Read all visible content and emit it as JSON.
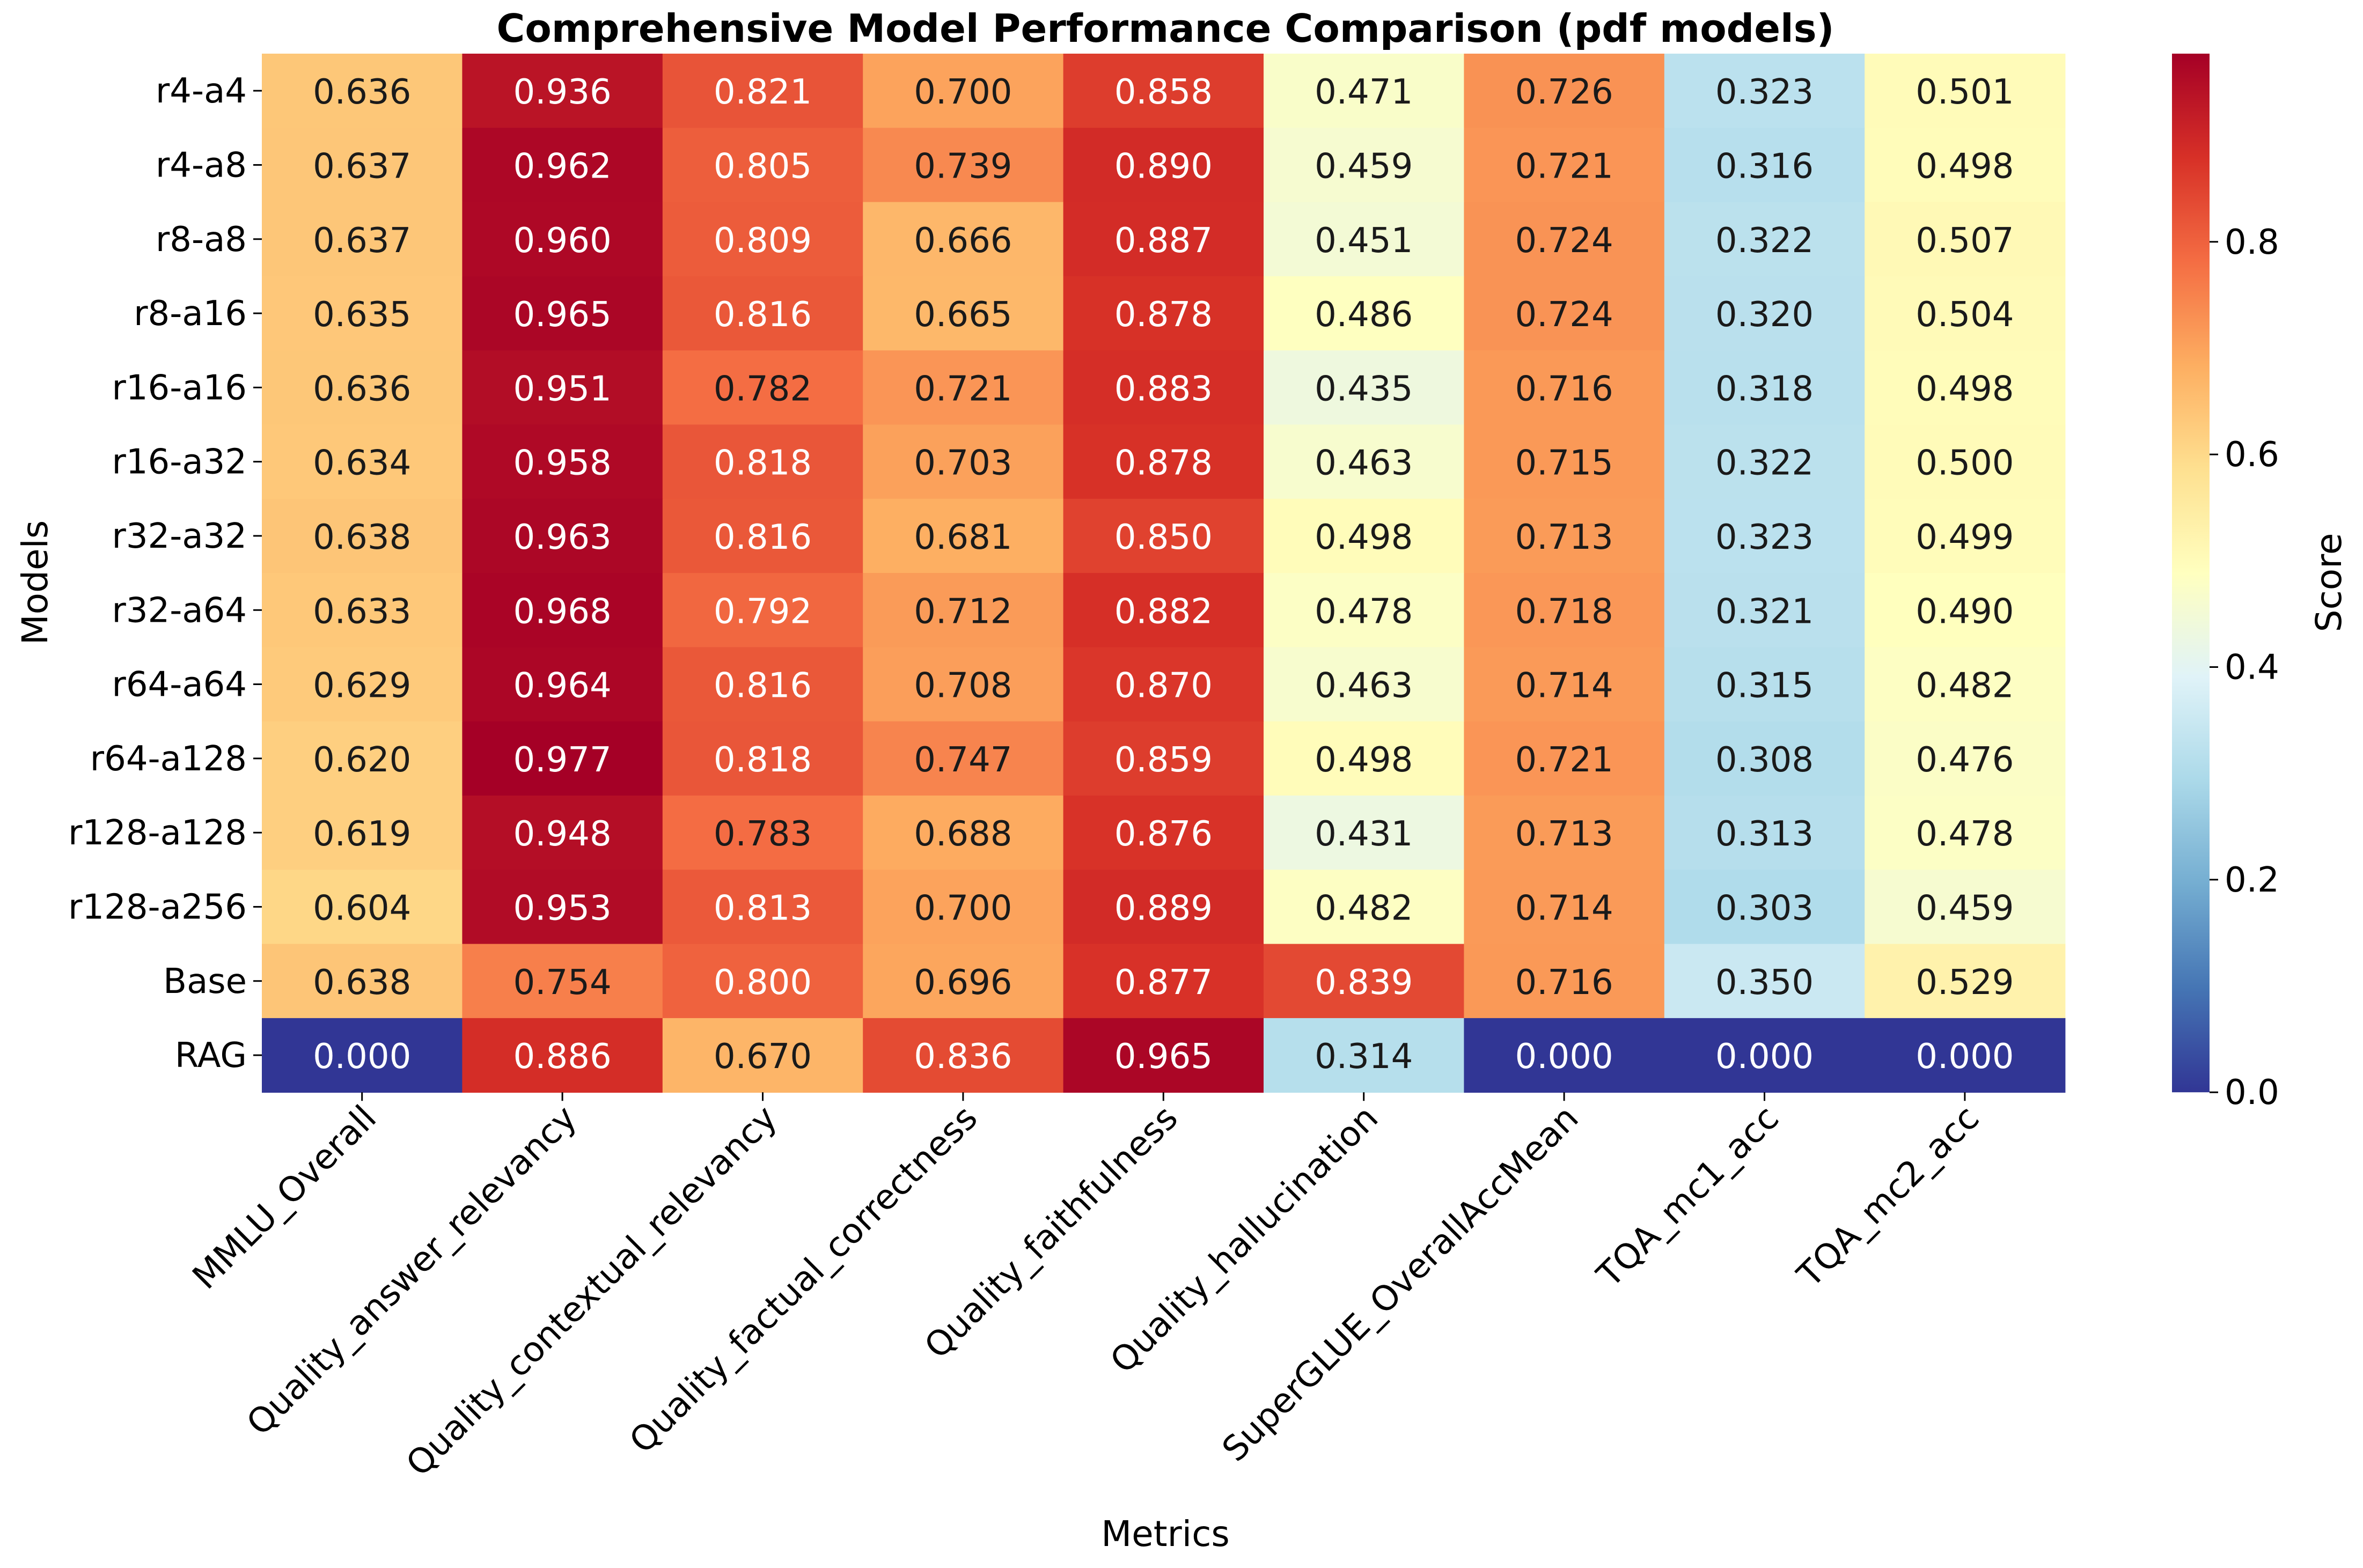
{
  "chart_data": {
    "type": "heatmap",
    "title": "Comprehensive Model Performance Comparison (pdf models)",
    "xlabel": "Metrics",
    "ylabel": "Models",
    "colorbar_label": "Score",
    "colormap": "RdYlBu_r",
    "value_range": [
      0,
      0.977
    ],
    "colorbar_ticks": [
      "0.0",
      "0.2",
      "0.4",
      "0.6",
      "0.8"
    ],
    "columns": [
      "MMLU_Overall",
      "Quality_answer_relevancy",
      "Quality_contextual_relevancy",
      "Quality_factual_correctness",
      "Quality_faithfulness",
      "Quality_hallucination",
      "SuperGLUE_OverallAccMean",
      "TQA_mc1_acc",
      "TQA_mc2_acc"
    ],
    "rows": [
      "r4-a4",
      "r4-a8",
      "r8-a8",
      "r8-a16",
      "r16-a16",
      "r16-a32",
      "r32-a32",
      "r32-a64",
      "r64-a64",
      "r64-a128",
      "r128-a128",
      "r128-a256",
      "Base",
      "RAG"
    ],
    "values": [
      [
        0.636,
        0.936,
        0.821,
        0.7,
        0.858,
        0.471,
        0.726,
        0.323,
        0.501
      ],
      [
        0.637,
        0.962,
        0.805,
        0.739,
        0.89,
        0.459,
        0.721,
        0.316,
        0.498
      ],
      [
        0.637,
        0.96,
        0.809,
        0.666,
        0.887,
        0.451,
        0.724,
        0.322,
        0.507
      ],
      [
        0.635,
        0.965,
        0.816,
        0.665,
        0.878,
        0.486,
        0.724,
        0.32,
        0.504
      ],
      [
        0.636,
        0.951,
        0.782,
        0.721,
        0.883,
        0.435,
        0.716,
        0.318,
        0.498
      ],
      [
        0.634,
        0.958,
        0.818,
        0.703,
        0.878,
        0.463,
        0.715,
        0.322,
        0.5
      ],
      [
        0.638,
        0.963,
        0.816,
        0.681,
        0.85,
        0.498,
        0.713,
        0.323,
        0.499
      ],
      [
        0.633,
        0.968,
        0.792,
        0.712,
        0.882,
        0.478,
        0.718,
        0.321,
        0.49
      ],
      [
        0.629,
        0.964,
        0.816,
        0.708,
        0.87,
        0.463,
        0.714,
        0.315,
        0.482
      ],
      [
        0.62,
        0.977,
        0.818,
        0.747,
        0.859,
        0.498,
        0.721,
        0.308,
        0.476
      ],
      [
        0.619,
        0.948,
        0.783,
        0.688,
        0.876,
        0.431,
        0.713,
        0.313,
        0.478
      ],
      [
        0.604,
        0.953,
        0.813,
        0.7,
        0.889,
        0.482,
        0.714,
        0.303,
        0.459
      ],
      [
        0.638,
        0.754,
        0.8,
        0.696,
        0.877,
        0.839,
        0.716,
        0.35,
        0.529
      ],
      [
        0.0,
        0.886,
        0.67,
        0.836,
        0.965,
        0.314,
        0.0,
        0.0,
        0.0
      ]
    ]
  }
}
